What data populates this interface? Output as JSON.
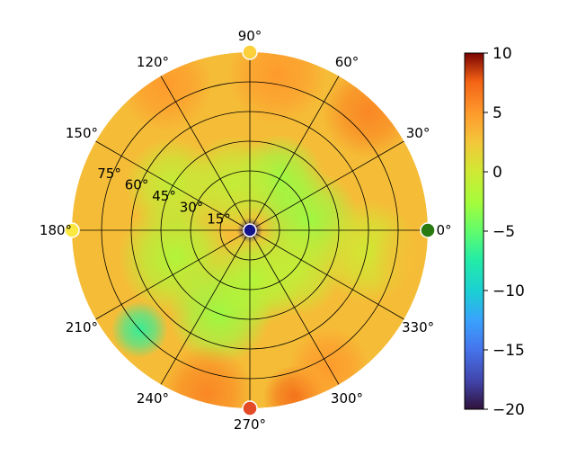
{
  "chart_data": {
    "type": "heatmap",
    "projection": "polar",
    "title": "",
    "angular_ticks": [
      "0°",
      "30°",
      "60°",
      "90°",
      "120°",
      "150°",
      "180°",
      "210°",
      "240°",
      "270°",
      "300°",
      "330°"
    ],
    "radial_ticks": [
      "15°",
      "30°",
      "45°",
      "60°",
      "75°"
    ],
    "radial_tick_values": [
      15,
      30,
      45,
      60,
      75
    ],
    "radial_max": 90,
    "colorbar": {
      "min": -20,
      "max": 10,
      "ticks": [
        10,
        5,
        0,
        -5,
        -10,
        -15,
        -20
      ],
      "tick_labels": [
        "10",
        "5",
        "0",
        "−5",
        "−10",
        "−15",
        "−20"
      ],
      "colormap": "turbo"
    },
    "grid": true,
    "field_blobs": [
      {
        "theta": 0,
        "r": 0,
        "value": -19,
        "spread": 4
      },
      {
        "theta": 10,
        "r": 30,
        "value": -3,
        "spread": 16
      },
      {
        "theta": 60,
        "r": 30,
        "value": -3,
        "spread": 14
      },
      {
        "theta": 110,
        "r": 25,
        "value": -1,
        "spread": 15
      },
      {
        "theta": 150,
        "r": 45,
        "value": -1,
        "spread": 15
      },
      {
        "theta": 200,
        "r": 40,
        "value": -2,
        "spread": 18
      },
      {
        "theta": 222,
        "r": 75,
        "value": -7,
        "spread": 9
      },
      {
        "theta": 250,
        "r": 45,
        "value": -3,
        "spread": 16
      },
      {
        "theta": 275,
        "r": 25,
        "value": -2,
        "spread": 15
      },
      {
        "theta": 320,
        "r": 30,
        "value": -1,
        "spread": 15
      },
      {
        "theta": 350,
        "r": 60,
        "value": 0,
        "spread": 16
      },
      {
        "theta": 45,
        "r": 85,
        "value": 6,
        "spread": 15
      },
      {
        "theta": 80,
        "r": 80,
        "value": 5,
        "spread": 16
      },
      {
        "theta": 120,
        "r": 85,
        "value": 5,
        "spread": 15
      },
      {
        "theta": 255,
        "r": 85,
        "value": 6,
        "spread": 15
      },
      {
        "theta": 285,
        "r": 87,
        "value": 7,
        "spread": 10
      },
      {
        "theta": 300,
        "r": 80,
        "value": 5,
        "spread": 13
      },
      {
        "theta": 350,
        "r": 85,
        "value": 3,
        "spread": 14
      }
    ],
    "markers": [
      {
        "theta": 0,
        "r": 90,
        "color": "#2a7a12",
        "label": "0°"
      },
      {
        "theta": 90,
        "r": 90,
        "color": "#fbd03a"
      },
      {
        "theta": 180,
        "r": 90,
        "color": "#fbe840"
      },
      {
        "theta": 270,
        "r": 90,
        "color": "#e34a26"
      },
      {
        "theta": 0,
        "r": 0,
        "color": "#12138a"
      }
    ]
  }
}
